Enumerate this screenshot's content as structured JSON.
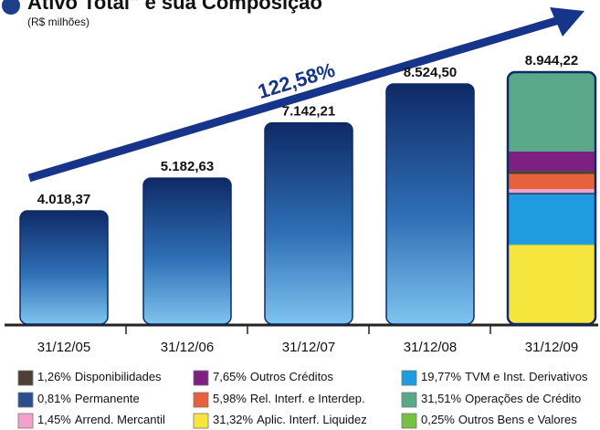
{
  "chart_data": {
    "type": "bar",
    "title": "Ativo Total\" e sua Composição",
    "subtitle": "(R$ milhões)",
    "annotation": "122,58%",
    "categories": [
      "31/12/05",
      "31/12/06",
      "31/12/07",
      "31/12/08",
      "31/12/09"
    ],
    "values": [
      4018.37,
      5182.63,
      7142.21,
      8524.5,
      8944.22
    ],
    "value_labels": [
      "4.018,37",
      "5.182,63",
      "7.142,21",
      "8.524,50",
      "8.944,22"
    ],
    "composition": [
      {
        "name": "Aplic. Interf. Liquidez",
        "value": 31.32,
        "value_label": "31,32%",
        "color": "#f6e53c"
      },
      {
        "name": "Outros Bens e Valores",
        "value": 0.25,
        "value_label": "0,25%",
        "color": "#76c043"
      },
      {
        "name": "TVM e Inst. Derivativos",
        "value": 19.77,
        "value_label": "19,77%",
        "color": "#1f9be0"
      },
      {
        "name": "Permanente",
        "value": 0.81,
        "value_label": "0,81%",
        "color": "#2b4d8c"
      },
      {
        "name": "Arrend. Mercantil",
        "value": 1.45,
        "value_label": "1,45%",
        "color": "#f2a2ca"
      },
      {
        "name": "Rel. Interf. e Interdep.",
        "value": 5.98,
        "value_label": "5,98%",
        "color": "#e6623a"
      },
      {
        "name": "Disponibilidades",
        "value": 1.26,
        "value_label": "1,26%",
        "color": "#4a4038"
      },
      {
        "name": "Outros Créditos",
        "value": 7.65,
        "value_label": "7,65%",
        "color": "#7c2182"
      },
      {
        "name": "Operações de Crédito",
        "value": 31.51,
        "value_label": "31,51%",
        "color": "#5aa88a"
      }
    ]
  }
}
